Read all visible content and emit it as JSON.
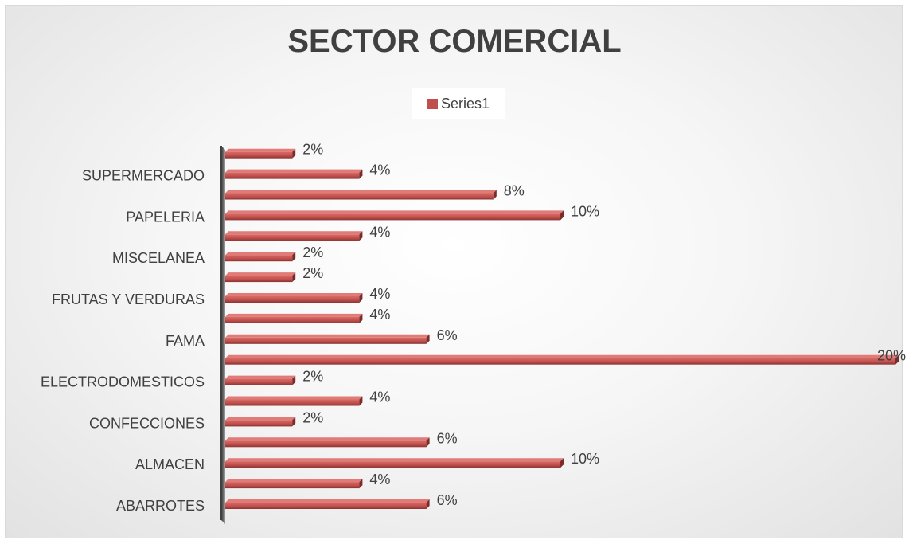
{
  "chart_data": {
    "type": "bar",
    "orientation": "horizontal",
    "title": "SECTOR COMERCIAL",
    "legend": {
      "position": "top",
      "entries": [
        "Series1"
      ]
    },
    "series": [
      {
        "name": "Series1",
        "color": "#c0504d",
        "values": [
          0.06,
          0.04,
          0.1,
          0.06,
          0.02,
          0.04,
          0.02,
          0.2,
          0.06,
          0.04,
          0.04,
          0.02,
          0.02,
          0.04,
          0.1,
          0.08,
          0.04,
          0.02
        ],
        "labels": [
          "6%",
          "4%",
          "10%",
          "6%",
          "2%",
          "4%",
          "2%",
          "20%",
          "6%",
          "4%",
          "4%",
          "2%",
          "2%",
          "4%",
          "10%",
          "8%",
          "4%",
          "2%"
        ]
      }
    ],
    "category_labels": [
      "ABARROTES",
      "",
      "ALMACEN",
      "",
      "CONFECCIONES",
      "",
      "ELECTRODOMESTICOS",
      "",
      "FAMA",
      "",
      "FRUTAS Y VERDURAS",
      "",
      "MISCELANEA ",
      "",
      "PAPELERIA",
      "",
      "SUPERMERCADO",
      ""
    ],
    "xlim": [
      0,
      0.2
    ],
    "xaxis_visible": false,
    "grid": false
  }
}
